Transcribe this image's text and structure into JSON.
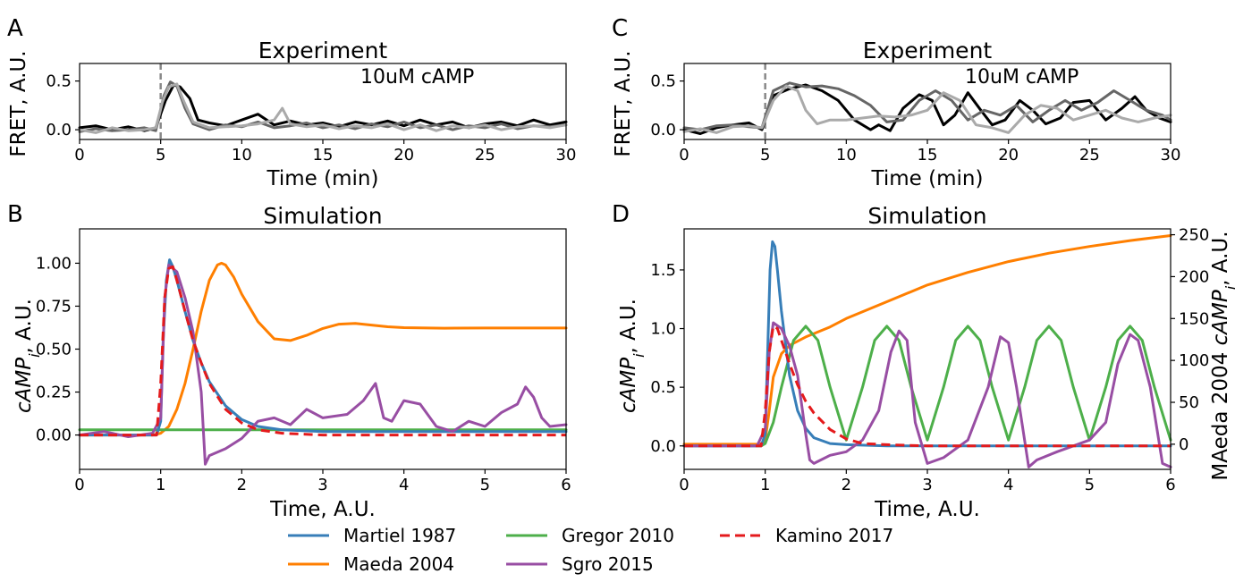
{
  "colors": {
    "martiel": "#377eb8",
    "maeda": "#ff7f00",
    "gregor": "#4daf4a",
    "sgro": "#984ea3",
    "kamino": "#e41a1c",
    "exp1": "#000000",
    "exp2": "#666666",
    "exp3": "#aaaaaa",
    "stim": "#888888",
    "letterBlue": "#0000ff",
    "letterGreen": "#008000"
  },
  "chart_data": [
    {
      "panel": "A",
      "type": "line",
      "title": "Experiment",
      "annotation": "10uM cAMP",
      "xlabel": "Time (min)",
      "ylabel": "FRET, A.U.",
      "xlim": [
        0,
        30
      ],
      "ylim": [
        -0.1,
        0.68
      ],
      "xticks": [
        "0",
        "5",
        "10",
        "15",
        "20",
        "25",
        "30"
      ],
      "yticks": [
        "0.0",
        "0.5"
      ],
      "stimulus_x": 5,
      "series": [
        {
          "color": "exp1",
          "x": [
            0,
            1,
            2,
            3,
            4,
            4.7,
            5.3,
            5.8,
            6.2,
            6.8,
            7.3,
            8,
            9,
            10,
            11,
            12,
            13,
            14,
            15,
            16,
            17,
            18,
            19,
            20,
            21,
            22,
            23,
            24,
            25,
            26,
            27,
            28,
            29,
            30
          ],
          "y": [
            0.02,
            0.04,
            0.0,
            0.03,
            -0.01,
            0.02,
            0.3,
            0.46,
            0.44,
            0.32,
            0.1,
            0.07,
            0.04,
            0.1,
            0.16,
            0.05,
            0.09,
            0.05,
            0.07,
            0.03,
            0.08,
            0.05,
            0.09,
            0.04,
            0.1,
            0.05,
            0.08,
            0.02,
            0.06,
            0.08,
            0.04,
            0.1,
            0.05,
            0.08
          ]
        },
        {
          "color": "exp2",
          "x": [
            0,
            1,
            2,
            3,
            4,
            4.7,
            5.2,
            5.6,
            6,
            6.5,
            7,
            8,
            9,
            10,
            11,
            12,
            13,
            14,
            15,
            16,
            17,
            18,
            19,
            20,
            21,
            22,
            23,
            24,
            25,
            26,
            27,
            28,
            29,
            30
          ],
          "y": [
            -0.02,
            0.01,
            -0.01,
            0.0,
            0.02,
            -0.01,
            0.35,
            0.49,
            0.45,
            0.22,
            0.06,
            0.0,
            0.05,
            0.03,
            0.08,
            0.02,
            0.04,
            0.07,
            0.02,
            0.05,
            0.01,
            0.06,
            0.03,
            0.08,
            0.02,
            0.05,
            0.0,
            0.04,
            0.02,
            0.06,
            0.01,
            0.04,
            0.03,
            0.05
          ]
        },
        {
          "color": "exp3",
          "x": [
            0,
            1,
            2,
            3,
            4,
            4.7,
            5.1,
            5.5,
            6,
            6.4,
            7,
            8,
            9,
            10,
            11,
            12,
            12.5,
            13,
            14,
            15,
            16,
            17,
            18,
            19,
            20,
            21,
            22,
            23,
            24,
            25,
            26,
            27,
            28,
            29,
            30
          ],
          "y": [
            0.0,
            -0.03,
            0.02,
            -0.01,
            0.0,
            0.02,
            0.28,
            0.44,
            0.47,
            0.3,
            0.08,
            0.02,
            0.03,
            0.04,
            0.06,
            0.1,
            0.22,
            0.06,
            0.03,
            0.05,
            0.01,
            0.04,
            0.02,
            0.06,
            0.0,
            0.05,
            -0.01,
            0.04,
            0.02,
            0.05,
            0.0,
            0.03,
            0.04,
            0.02,
            0.05
          ]
        }
      ]
    },
    {
      "panel": "B",
      "type": "line",
      "title": "Simulation",
      "xlabel": "Time, A.U.",
      "ylabel": "cAMP_i, A.U.",
      "xlim": [
        0,
        6
      ],
      "ylim": [
        -0.2,
        1.2
      ],
      "xticks": [
        "0",
        "1",
        "2",
        "3",
        "4",
        "5",
        "6"
      ],
      "yticks": [
        "0.00",
        "0.25",
        "0.50",
        "0.75",
        "1.00"
      ],
      "series": [
        {
          "color": "maeda",
          "x": [
            0,
            0.9,
            1.0,
            1.1,
            1.2,
            1.3,
            1.4,
            1.5,
            1.6,
            1.7,
            1.75,
            1.8,
            1.9,
            2.0,
            2.2,
            2.4,
            2.6,
            2.8,
            3.0,
            3.2,
            3.4,
            3.6,
            3.8,
            4.0,
            4.5,
            5.0,
            5.5,
            6.0
          ],
          "y": [
            0,
            0,
            0.01,
            0.05,
            0.15,
            0.3,
            0.5,
            0.72,
            0.9,
            0.99,
            1.0,
            0.99,
            0.92,
            0.82,
            0.66,
            0.56,
            0.55,
            0.58,
            0.62,
            0.645,
            0.65,
            0.64,
            0.63,
            0.625,
            0.622,
            0.623,
            0.623,
            0.623
          ]
        },
        {
          "color": "gregor",
          "x": [
            0,
            6
          ],
          "y": [
            0.03,
            0.03
          ]
        },
        {
          "color": "martiel",
          "x": [
            0,
            0.95,
            1.0,
            1.03,
            1.07,
            1.11,
            1.15,
            1.2,
            1.3,
            1.4,
            1.5,
            1.6,
            1.8,
            2.0,
            2.2,
            2.5,
            3.0,
            4.0,
            5.0,
            6.0
          ],
          "y": [
            0,
            0,
            0.08,
            0.55,
            0.9,
            1.02,
            0.98,
            0.9,
            0.72,
            0.55,
            0.42,
            0.31,
            0.17,
            0.09,
            0.05,
            0.03,
            0.02,
            0.02,
            0.02,
            0.02
          ]
        },
        {
          "color": "sgro",
          "x": [
            0,
            0.3,
            0.6,
            0.9,
            1.0,
            1.05,
            1.1,
            1.2,
            1.3,
            1.4,
            1.5,
            1.55,
            1.6,
            1.8,
            2.0,
            2.2,
            2.4,
            2.6,
            2.8,
            3.0,
            3.3,
            3.5,
            3.65,
            3.75,
            3.85,
            4.0,
            4.2,
            4.4,
            4.6,
            4.8,
            5.0,
            5.2,
            5.4,
            5.5,
            5.6,
            5.7,
            5.8,
            6.0
          ],
          "y": [
            0.0,
            0.02,
            -0.01,
            0.01,
            0.1,
            0.8,
            0.99,
            0.95,
            0.8,
            0.6,
            0.25,
            -0.17,
            -0.12,
            -0.08,
            -0.02,
            0.08,
            0.1,
            0.06,
            0.15,
            0.1,
            0.12,
            0.2,
            0.3,
            0.1,
            0.08,
            0.2,
            0.18,
            0.05,
            0.02,
            0.08,
            0.05,
            0.13,
            0.18,
            0.28,
            0.22,
            0.1,
            0.05,
            0.06
          ]
        },
        {
          "color": "kamino",
          "dashed": true,
          "x": [
            0,
            0.95,
            1.0,
            1.05,
            1.1,
            1.15,
            1.2,
            1.3,
            1.4,
            1.5,
            1.6,
            1.8,
            2.0,
            2.2,
            2.5,
            3.0,
            4.0,
            5.0,
            6.0
          ],
          "y": [
            0,
            0,
            0.3,
            0.8,
            0.97,
            0.98,
            0.9,
            0.72,
            0.55,
            0.42,
            0.3,
            0.15,
            0.07,
            0.03,
            0.01,
            0.0,
            0.0,
            0.0,
            0.0
          ]
        }
      ]
    },
    {
      "panel": "C",
      "type": "line",
      "title": "Experiment",
      "annotation": "10uM cAMP",
      "xlabel": "Time (min)",
      "ylabel": "FRET, A.U.",
      "xlim": [
        0,
        30
      ],
      "ylim": [
        -0.1,
        0.68
      ],
      "xticks": [
        "0",
        "5",
        "10",
        "15",
        "20",
        "25",
        "30"
      ],
      "yticks": [
        "0.0",
        "0.5"
      ],
      "stimulus_x": 5,
      "series": [
        {
          "color": "exp1",
          "x": [
            0,
            1,
            2,
            3,
            4,
            4.8,
            5.5,
            6.5,
            7.5,
            8.5,
            9.5,
            10.5,
            11.5,
            12,
            12.7,
            13.5,
            14.5,
            15.3,
            16,
            16.7,
            17.5,
            18.3,
            19,
            19.8,
            20.7,
            21.5,
            22.3,
            23.2,
            24,
            25,
            26,
            27,
            27.8,
            28.5,
            29.3,
            30
          ],
          "y": [
            0.0,
            -0.04,
            0.02,
            0.05,
            0.07,
            0.0,
            0.35,
            0.42,
            0.46,
            0.4,
            0.3,
            0.1,
            0.0,
            0.05,
            -0.01,
            0.22,
            0.36,
            0.3,
            0.05,
            0.15,
            0.38,
            0.2,
            0.05,
            0.1,
            0.3,
            0.2,
            0.06,
            0.12,
            0.28,
            0.3,
            0.1,
            0.22,
            0.34,
            0.2,
            0.12,
            0.08
          ]
        },
        {
          "color": "exp2",
          "x": [
            0,
            1,
            2,
            3,
            4,
            4.8,
            5.5,
            6.5,
            7.5,
            8.5,
            9.5,
            10.5,
            11.5,
            12.5,
            13.5,
            14.5,
            15.5,
            16.5,
            17.5,
            18.5,
            19.5,
            20.5,
            21.5,
            22.5,
            23.5,
            24.5,
            25.5,
            26.5,
            27.5,
            28.5,
            29.5,
            30
          ],
          "y": [
            0.02,
            0.0,
            0.04,
            0.05,
            0.03,
            0.02,
            0.4,
            0.48,
            0.44,
            0.45,
            0.42,
            0.35,
            0.25,
            0.08,
            0.1,
            0.3,
            0.4,
            0.3,
            0.1,
            0.2,
            0.15,
            0.25,
            0.08,
            0.2,
            0.3,
            0.2,
            0.28,
            0.4,
            0.3,
            0.2,
            0.15,
            0.1
          ]
        },
        {
          "color": "exp3",
          "x": [
            0,
            1,
            2,
            3,
            4,
            4.8,
            5.5,
            6.3,
            7,
            7.5,
            8.2,
            9,
            10,
            11,
            12,
            13,
            14,
            15,
            16,
            17,
            18,
            19,
            20,
            21,
            22,
            23,
            24,
            25,
            26,
            27,
            28,
            29,
            30
          ],
          "y": [
            -0.02,
            0.01,
            -0.03,
            0.03,
            0.04,
            0.02,
            0.3,
            0.45,
            0.4,
            0.2,
            0.06,
            0.1,
            0.1,
            0.12,
            0.14,
            0.13,
            0.15,
            0.2,
            0.38,
            0.3,
            0.05,
            0.02,
            -0.03,
            0.15,
            0.25,
            0.22,
            0.1,
            0.15,
            0.2,
            0.12,
            0.08,
            0.12,
            0.15
          ]
        }
      ]
    },
    {
      "panel": "D",
      "type": "line",
      "title": "Simulation",
      "xlabel": "Time, A.U.",
      "ylabel": "cAMP_i, A.U.",
      "y2label": "MAeda 2004 cAMP_i, A.U.",
      "xlim": [
        0,
        6
      ],
      "ylim": [
        -0.2,
        1.85
      ],
      "y2lim": [
        -30,
        257
      ],
      "xticks": [
        "0",
        "1",
        "2",
        "3",
        "4",
        "5",
        "6"
      ],
      "yticks": [
        "0.0",
        "0.5",
        "1.0",
        "1.5"
      ],
      "y2ticks": [
        "0",
        "50",
        "100",
        "150",
        "200",
        "250"
      ],
      "series": [
        {
          "color": "maeda",
          "axis": "right",
          "x": [
            0,
            0.95,
            1.0,
            1.05,
            1.1,
            1.2,
            1.3,
            1.5,
            1.8,
            2.0,
            2.5,
            3.0,
            3.5,
            4.0,
            4.5,
            5.0,
            5.5,
            6.0
          ],
          "y": [
            0,
            0,
            5,
            40,
            80,
            108,
            118,
            128,
            140,
            150,
            170,
            190,
            205,
            218,
            228,
            236,
            243,
            249
          ]
        },
        {
          "color": "gregor",
          "x": [
            0,
            0.95,
            1.0,
            1.1,
            1.2,
            1.35,
            1.5,
            1.65,
            1.8,
            2.0,
            2.2,
            2.35,
            2.5,
            2.65,
            2.8,
            3.0,
            3.2,
            3.35,
            3.5,
            3.65,
            3.8,
            4.0,
            4.2,
            4.35,
            4.5,
            4.65,
            4.8,
            5.0,
            5.2,
            5.35,
            5.5,
            5.65,
            5.8,
            6.0
          ],
          "y": [
            0,
            0,
            0.02,
            0.2,
            0.5,
            0.9,
            1.02,
            0.9,
            0.5,
            0.05,
            0.5,
            0.9,
            1.02,
            0.9,
            0.5,
            0.05,
            0.5,
            0.9,
            1.02,
            0.9,
            0.5,
            0.05,
            0.5,
            0.9,
            1.02,
            0.9,
            0.5,
            0.05,
            0.5,
            0.9,
            1.02,
            0.9,
            0.5,
            0.05
          ]
        },
        {
          "color": "martiel",
          "x": [
            0,
            0.95,
            1.0,
            1.03,
            1.06,
            1.09,
            1.12,
            1.15,
            1.2,
            1.3,
            1.4,
            1.5,
            1.6,
            1.8,
            2.0,
            2.5,
            3.0,
            6.0
          ],
          "y": [
            0,
            0,
            0.1,
            0.8,
            1.5,
            1.74,
            1.7,
            1.5,
            1.15,
            0.6,
            0.3,
            0.15,
            0.07,
            0.02,
            0.01,
            0.0,
            0.0,
            0.0
          ]
        },
        {
          "color": "sgro",
          "x": [
            0,
            0.9,
            1.0,
            1.05,
            1.1,
            1.2,
            1.3,
            1.4,
            1.5,
            1.55,
            1.6,
            1.8,
            2.0,
            2.2,
            2.4,
            2.55,
            2.65,
            2.75,
            2.85,
            3.0,
            3.2,
            3.5,
            3.75,
            3.9,
            4.0,
            4.1,
            4.25,
            4.35,
            4.6,
            4.8,
            5.0,
            5.2,
            5.35,
            5.5,
            5.6,
            5.75,
            5.9,
            6.0
          ],
          "y": [
            0.0,
            0.0,
            0.15,
            0.8,
            1.05,
            1.0,
            0.85,
            0.6,
            0.1,
            -0.12,
            -0.15,
            -0.08,
            -0.05,
            0.05,
            0.3,
            0.8,
            0.98,
            0.9,
            0.2,
            -0.15,
            -0.1,
            0.05,
            0.5,
            0.93,
            0.88,
            0.5,
            -0.18,
            -0.12,
            -0.05,
            0.0,
            0.05,
            0.2,
            0.7,
            0.95,
            0.9,
            0.5,
            -0.15,
            -0.18
          ]
        },
        {
          "color": "kamino",
          "dashed": true,
          "x": [
            0,
            0.95,
            1.0,
            1.05,
            1.1,
            1.15,
            1.2,
            1.3,
            1.4,
            1.5,
            1.6,
            1.8,
            2.0,
            2.2,
            2.5,
            3.0,
            6.0
          ],
          "y": [
            0,
            0,
            0.3,
            0.8,
            1.02,
            1.0,
            0.9,
            0.7,
            0.52,
            0.38,
            0.28,
            0.14,
            0.06,
            0.02,
            0.01,
            0.0,
            0.0
          ]
        }
      ]
    }
  ],
  "legend": [
    {
      "label": "Martiel 1987",
      "color": "martiel",
      "dashed": false
    },
    {
      "label": "Maeda 2004",
      "color": "maeda",
      "dashed": false
    },
    {
      "label": "Gregor 2010",
      "color": "gregor",
      "dashed": false
    },
    {
      "label": "Sgro 2015",
      "color": "sgro",
      "dashed": false
    },
    {
      "label": "Kamino 2017",
      "color": "kamino",
      "dashed": true
    }
  ]
}
